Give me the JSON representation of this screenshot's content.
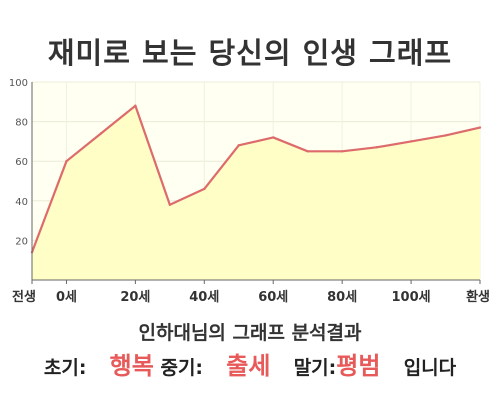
{
  "chart_data": {
    "type": "area",
    "title": "재미로 보는 당신의 인생 그래프",
    "x_categories": [
      "전생",
      "0세",
      "20세",
      "40세",
      "60세",
      "80세",
      "100세",
      "환생"
    ],
    "x": [
      "전생",
      "0세",
      "",
      "20세",
      "",
      "40세",
      "",
      "60세",
      "",
      "80세",
      "",
      "100세",
      "",
      "환생"
    ],
    "y": [
      14,
      60,
      74,
      88,
      38,
      46,
      68,
      72,
      65,
      65,
      67,
      70,
      73,
      77
    ],
    "ylim": [
      0,
      100
    ],
    "yticks": [
      20,
      40,
      60,
      80,
      100
    ],
    "grid": true,
    "line_color": "#dd6b6b",
    "fill_color": "#fffec7",
    "plot_bg": "#fffff2"
  },
  "analysis_title": "인하대님의 그래프 분석결과",
  "result": {
    "early_label": "초기:",
    "early_value": "행복",
    "middle_label": "중기:",
    "middle_value": "출세",
    "late_label": "말기:",
    "late_value": "평범",
    "suffix": "입니다"
  }
}
